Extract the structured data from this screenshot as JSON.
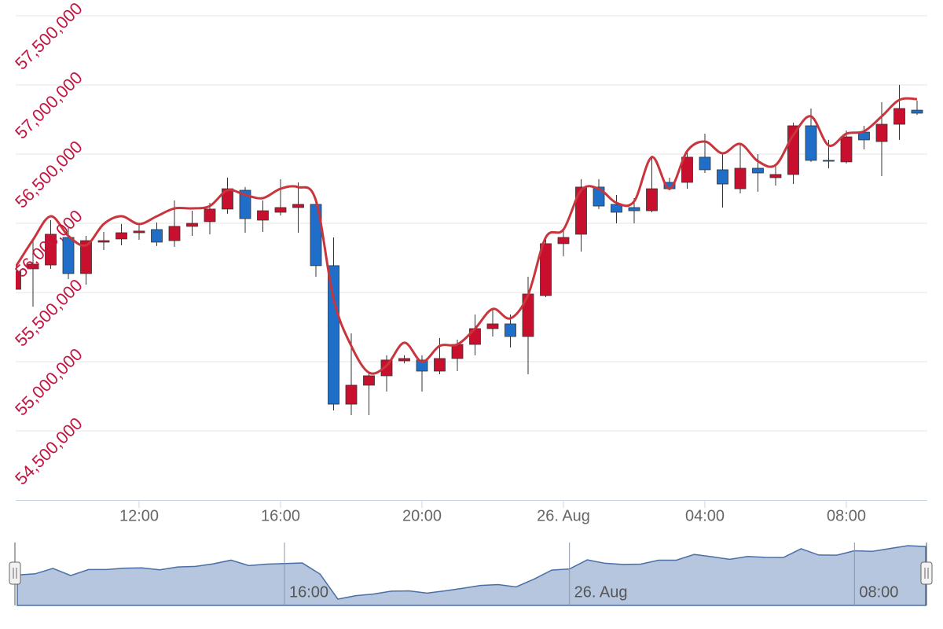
{
  "chart_data": {
    "type": "candlestick",
    "categories": [
      "08:30",
      "09:00",
      "09:30",
      "10:00",
      "10:30",
      "11:00",
      "11:30",
      "12:00",
      "12:30",
      "13:00",
      "13:30",
      "14:00",
      "14:30",
      "15:00",
      "15:30",
      "16:00",
      "16:30",
      "17:00",
      "17:30",
      "18:00",
      "18:30",
      "19:00",
      "19:30",
      "20:00",
      "20:30",
      "21:00",
      "21:30",
      "22:00",
      "22:30",
      "23:00",
      "23:30",
      "00:00",
      "00:30",
      "01:00",
      "01:30",
      "02:00",
      "02:30",
      "03:00",
      "03:30",
      "04:00",
      "04:30",
      "05:00",
      "05:30",
      "06:00",
      "06:30",
      "07:00",
      "07:30",
      "08:00",
      "08:30",
      "09:00",
      "09:30",
      "10:00"
    ],
    "open": [
      55523000,
      55671000,
      55699000,
      55898000,
      55637000,
      55864000,
      55887000,
      55932000,
      55955000,
      55875000,
      55978000,
      56012000,
      56103000,
      56239000,
      56023000,
      56080000,
      56114000,
      56137000,
      55694000,
      54693000,
      54830000,
      54898000,
      55006000,
      55012000,
      54932000,
      55023000,
      55125000,
      55239000,
      55273000,
      55182000,
      55478000,
      55853000,
      55921000,
      56262000,
      56137000,
      56114000,
      56091000,
      56296000,
      56296000,
      56478000,
      56387000,
      56250000,
      56398000,
      56330000,
      56353000,
      56705000,
      56455000,
      56444000,
      56659000,
      56591000,
      56716000,
      56818000
    ],
    "high": [
      55694000,
      55881000,
      56023000,
      55966000,
      55909000,
      55938000,
      55995000,
      55995000,
      56006000,
      56165000,
      56091000,
      56148000,
      56330000,
      56262000,
      56165000,
      56319000,
      56296000,
      56182000,
      55898000,
      55205000,
      54921000,
      55046000,
      55046000,
      55046000,
      55171000,
      55159000,
      55341000,
      55387000,
      55341000,
      55614000,
      55909000,
      55955000,
      56319000,
      56319000,
      56205000,
      56182000,
      56489000,
      56330000,
      56534000,
      56648000,
      56500000,
      56580000,
      56500000,
      56432000,
      56727000,
      56830000,
      56603000,
      56671000,
      56705000,
      56875000,
      57000000,
      56887000
    ],
    "low": [
      55296000,
      55398000,
      55671000,
      55597000,
      55557000,
      55807000,
      55841000,
      55881000,
      55836000,
      55830000,
      55909000,
      55921000,
      56069000,
      55932000,
      55938000,
      56057000,
      55932000,
      55614000,
      54648000,
      54614000,
      54614000,
      54784000,
      54989000,
      54784000,
      54909000,
      54932000,
      55046000,
      55182000,
      55103000,
      54909000,
      55466000,
      55762000,
      55796000,
      56103000,
      56000000,
      56000000,
      56080000,
      56239000,
      56250000,
      56364000,
      56114000,
      56216000,
      56228000,
      56273000,
      56284000,
      56444000,
      56398000,
      56432000,
      56534000,
      56341000,
      56603000,
      56784000
    ],
    "close": [
      55654000,
      55705000,
      55921000,
      55637000,
      55875000,
      55875000,
      55932000,
      55944000,
      55864000,
      55978000,
      56000000,
      56103000,
      56250000,
      56034000,
      56091000,
      56114000,
      56137000,
      55694000,
      54693000,
      54830000,
      54898000,
      55012000,
      55023000,
      54932000,
      55023000,
      55125000,
      55239000,
      55273000,
      55182000,
      55489000,
      55853000,
      55898000,
      56262000,
      56125000,
      56080000,
      56091000,
      56250000,
      56250000,
      56478000,
      56387000,
      56284000,
      56398000,
      56364000,
      56353000,
      56705000,
      56455000,
      56449000,
      56625000,
      56603000,
      56716000,
      56830000,
      56796000
    ],
    "up_color": "#c8102e",
    "down_color": "#1f6fc9",
    "line_values": [
      55682000,
      55881000,
      56051000,
      55909000,
      55841000,
      55995000,
      56051000,
      55995000,
      56051000,
      56108000,
      56108000,
      56125000,
      56239000,
      56205000,
      56182000,
      56250000,
      56262000,
      56165000,
      55455000,
      55114000,
      54921000,
      54972000,
      55137000,
      55000000,
      55114000,
      55125000,
      55239000,
      55381000,
      55313000,
      55483000,
      55898000,
      55955000,
      56239000,
      56250000,
      56148000,
      56159000,
      56478000,
      56250000,
      56523000,
      56591000,
      56506000,
      56574000,
      56449000,
      56421000,
      56637000,
      56773000,
      56563000,
      56648000,
      56665000,
      56773000,
      56892000,
      56898000
    ],
    "line_color": "#c9353c",
    "ylim": [
      54000000,
      57614000
    ],
    "yticks": [
      {
        "value": 54500000,
        "label": "54,500,000"
      },
      {
        "value": 55000000,
        "label": "55,000,000"
      },
      {
        "value": 55500000,
        "label": "55,500,000"
      },
      {
        "value": 56000000,
        "label": "56,000,000"
      },
      {
        "value": 56500000,
        "label": "56,500,000"
      },
      {
        "value": 57000000,
        "label": "57,000,000"
      },
      {
        "value": 57500000,
        "label": "57,500,000"
      }
    ],
    "ytick_color": "#c0163f",
    "xticks": [
      "12:00",
      "16:00",
      "20:00",
      {
        "value": "00:00",
        "label": "26. Aug"
      },
      "04:00",
      "08:00"
    ],
    "grid": true,
    "navigator": {
      "xticks": [
        "16:00",
        {
          "value": "00:00",
          "label": "26. Aug"
        },
        "08:00"
      ],
      "color": "#b5c6de",
      "line_color": "#4a6fa5"
    }
  }
}
